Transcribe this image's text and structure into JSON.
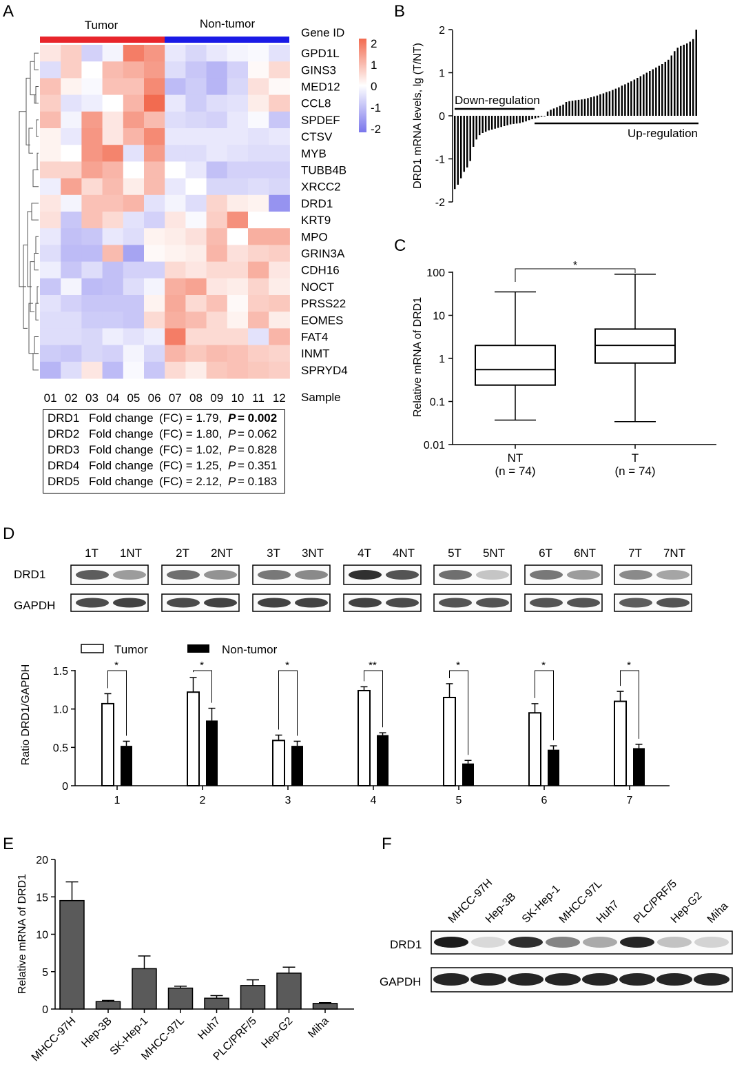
{
  "panel_labels": {
    "a": "A",
    "b": "B",
    "c": "C",
    "d": "D",
    "e": "E",
    "f": "F"
  },
  "panel_a": {
    "group_labels": [
      "Tumor",
      "Non-tumor"
    ],
    "gene_id_label": "Gene ID",
    "sample_label": "Sample",
    "genes": [
      "GPD1L",
      "GINS3",
      "MED12",
      "CCL8",
      "SPDEF",
      "CTSV",
      "MYB",
      "TUBB4B",
      "XRCC2",
      "DRD1",
      "KRT9",
      "MPO",
      "GRIN3A",
      "CDH16",
      "NOCT",
      "PRSS22",
      "EOMES",
      "FAT4",
      "INMT",
      "SPRYD4"
    ],
    "samples": [
      "01",
      "02",
      "03",
      "04",
      "05",
      "06",
      "07",
      "08",
      "09",
      "10",
      "11",
      "12"
    ],
    "colorbar_ticks": [
      "2",
      "1",
      "0",
      "-1",
      "-2"
    ],
    "colors": {
      "tumor": "#e8252b",
      "non_tumor": "#1a1ae6",
      "high": "#f26b50",
      "low": "#7a76ec"
    },
    "fold_change": [
      {
        "gene": "DRD1",
        "label": "Fold change",
        "fc_text": "(FC) = 1.79,",
        "p_label": "P",
        "p_text": "= 0.002",
        "bold": true
      },
      {
        "gene": "DRD2",
        "label": "Fold change",
        "fc_text": "(FC) = 1.80,",
        "p_label": "P",
        "p_text": "= 0.062",
        "bold": false
      },
      {
        "gene": "DRD3",
        "label": "Fold change",
        "fc_text": "(FC) = 1.02,",
        "p_label": "P",
        "p_text": "= 0.828",
        "bold": false
      },
      {
        "gene": "DRD4",
        "label": "Fold change",
        "fc_text": "(FC) = 1.25,",
        "p_label": "P",
        "p_text": "= 0.351",
        "bold": false
      },
      {
        "gene": "DRD5",
        "label": "Fold change",
        "fc_text": "(FC) = 2.12,",
        "p_label": "P",
        "p_text": "= 0.183",
        "bold": false
      }
    ],
    "heatmap_values": [
      [
        0.4,
        0.8,
        -0.8,
        -0.2,
        2.1,
        1.7,
        -0.4,
        -0.7,
        -0.4,
        -0.2,
        -0.1,
        -0.5
      ],
      [
        -0.6,
        0.8,
        0.0,
        1.1,
        1.3,
        1.6,
        -0.6,
        -1.0,
        -1.3,
        -0.8,
        0.1,
        0.6
      ],
      [
        1.0,
        0.2,
        -0.1,
        1.0,
        1.0,
        1.9,
        -1.2,
        -0.9,
        -1.3,
        -0.7,
        0.5,
        0.1
      ],
      [
        0.8,
        -0.5,
        -0.3,
        0.0,
        1.2,
        2.4,
        -0.4,
        -0.9,
        -0.6,
        -0.5,
        0.3,
        0.8
      ],
      [
        1.1,
        -0.2,
        1.6,
        0.4,
        1.6,
        1.1,
        -0.6,
        -0.7,
        -0.8,
        -0.4,
        -0.1,
        -1.0
      ],
      [
        0.2,
        -0.4,
        1.7,
        0.4,
        1.2,
        1.9,
        -0.4,
        -0.4,
        -0.4,
        -0.4,
        -0.5,
        -0.4
      ],
      [
        0.2,
        0.0,
        1.7,
        2.0,
        -0.5,
        1.6,
        -0.6,
        -0.6,
        -0.4,
        -0.5,
        -0.6,
        -0.6
      ],
      [
        0.7,
        0.7,
        1.5,
        1.2,
        0.0,
        1.1,
        0.0,
        -0.4,
        -1.1,
        -0.8,
        -0.8,
        -0.8
      ],
      [
        -0.3,
        1.5,
        0.6,
        1.1,
        0.3,
        1.1,
        -0.4,
        0.0,
        -0.7,
        -0.7,
        -0.6,
        -0.7
      ],
      [
        0.4,
        -0.2,
        1.0,
        1.0,
        1.2,
        -0.5,
        -0.2,
        -0.6,
        0.7,
        0.3,
        0.2,
        -1.9
      ],
      [
        0.5,
        -1.0,
        1.0,
        0.6,
        -0.5,
        -0.8,
        0.4,
        -0.1,
        0.8,
        1.8,
        0.0,
        0.0
      ],
      [
        -0.4,
        -1.1,
        -1.0,
        -0.4,
        -0.6,
        0.2,
        0.3,
        0.5,
        1.1,
        0.0,
        1.3,
        1.3
      ],
      [
        -0.6,
        -1.2,
        -1.2,
        1.1,
        -1.6,
        0.1,
        0.2,
        0.3,
        1.2,
        0.5,
        0.7,
        0.8
      ],
      [
        -0.3,
        -1.0,
        -0.6,
        -1.1,
        -0.8,
        -0.8,
        0.6,
        0.4,
        0.6,
        0.6,
        1.3,
        0.4
      ],
      [
        -1.0,
        -0.2,
        -1.2,
        -1.1,
        -0.6,
        -0.2,
        1.3,
        1.5,
        0.4,
        0.3,
        0.7,
        0.3
      ],
      [
        -0.5,
        -0.8,
        -1.0,
        -1.0,
        -1.0,
        0.2,
        1.4,
        0.6,
        1.0,
        0.1,
        0.8,
        0.9
      ],
      [
        -0.6,
        -0.6,
        -0.9,
        -0.9,
        -1.0,
        0.6,
        1.3,
        1.1,
        0.6,
        0.2,
        1.1,
        0.3
      ],
      [
        -0.6,
        -0.6,
        -0.7,
        -0.3,
        -0.5,
        -0.3,
        2.1,
        0.6,
        0.6,
        0.6,
        -0.5,
        1.2
      ],
      [
        -0.9,
        -1.0,
        -0.7,
        -0.8,
        -0.2,
        -0.7,
        1.2,
        0.9,
        1.1,
        1.0,
        0.8,
        0.7
      ],
      [
        -1.3,
        -0.6,
        0.4,
        -1.2,
        -0.1,
        -1.0,
        0.6,
        0.3,
        0.9,
        1.0,
        0.9,
        0.8
      ]
    ]
  },
  "panel_b": {
    "chart_data": {
      "type": "bar",
      "ylabel": "DRD1 mRNA levels, lg (T/NT)",
      "ylim": [
        -2,
        2
      ],
      "yticks": [
        "2",
        "1",
        "0",
        "-1",
        "-2"
      ],
      "annotations": [
        "Down-regulation",
        "Up-regulation"
      ],
      "values": [
        -1.7,
        -1.6,
        -1.45,
        -1.3,
        -1.2,
        -1.05,
        -0.72,
        -0.55,
        -0.45,
        -0.4,
        -0.37,
        -0.34,
        -0.32,
        -0.3,
        -0.28,
        -0.26,
        -0.24,
        -0.22,
        -0.2,
        -0.19,
        -0.18,
        -0.17,
        -0.15,
        -0.13,
        -0.1,
        -0.08,
        -0.06,
        -0.04,
        -0.02,
        -0.01,
        0.1,
        0.14,
        0.17,
        0.2,
        0.23,
        0.26,
        0.32,
        0.34,
        0.35,
        0.36,
        0.37,
        0.38,
        0.39,
        0.41,
        0.43,
        0.45,
        0.47,
        0.5,
        0.52,
        0.55,
        0.57,
        0.6,
        0.63,
        0.66,
        0.7,
        0.73,
        0.77,
        0.8,
        0.84,
        0.88,
        0.92,
        0.96,
        1.0,
        1.04,
        1.08,
        1.12,
        1.16,
        1.2,
        1.25,
        1.3,
        1.4,
        1.5,
        1.58,
        1.62,
        1.65,
        1.68,
        1.72,
        1.78,
        2.0
      ]
    }
  },
  "panel_c": {
    "chart_data": {
      "type": "box",
      "ylabel": "Relative mRNA of DRD1",
      "yscale": "log",
      "ylim": [
        0.01,
        100
      ],
      "yticks": [
        "100",
        "10",
        "1",
        "0.1",
        "0.01"
      ],
      "categories": [
        "NT",
        "T"
      ],
      "n_labels": [
        "(n = 74)",
        "(n = 74)"
      ],
      "boxes": [
        {
          "min": 0.037,
          "q1": 0.24,
          "median": 0.55,
          "q3": 2.0,
          "max": 35
        },
        {
          "min": 0.034,
          "q1": 0.78,
          "median": 2.0,
          "q3": 4.8,
          "max": 90
        }
      ],
      "significance": "*"
    }
  },
  "panel_d": {
    "lane_labels": [
      "1T",
      "1NT",
      "2T",
      "2NT",
      "3T",
      "3NT",
      "4T",
      "4NT",
      "5T",
      "5NT",
      "6T",
      "6NT",
      "7T",
      "7NT"
    ],
    "row_labels": [
      "DRD1",
      "GAPDH"
    ],
    "drd1_band_intensity": [
      0.7,
      0.35,
      0.6,
      0.4,
      0.55,
      0.45,
      0.95,
      0.75,
      0.6,
      0.12,
      0.55,
      0.35,
      0.45,
      0.3
    ],
    "gapdh_band_intensity": [
      0.8,
      0.85,
      0.8,
      0.85,
      0.85,
      0.85,
      0.85,
      0.8,
      0.75,
      0.75,
      0.75,
      0.75,
      0.7,
      0.75
    ],
    "chart_data": {
      "type": "bar",
      "ylabel": "Ratio DRD1/GAPDH",
      "ylim": [
        0,
        1.5
      ],
      "yticks": [
        "0",
        "0.5",
        "1.0",
        "1.5"
      ],
      "categories": [
        "1",
        "2",
        "3",
        "4",
        "5",
        "6",
        "7"
      ],
      "series": [
        {
          "name": "Tumor",
          "values": [
            1.07,
            1.22,
            0.59,
            1.24,
            1.15,
            0.95,
            1.1
          ],
          "errors": [
            0.13,
            0.19,
            0.07,
            0.05,
            0.18,
            0.12,
            0.13
          ]
        },
        {
          "name": "Non-tumor",
          "values": [
            0.52,
            0.85,
            0.52,
            0.66,
            0.29,
            0.47,
            0.49
          ],
          "errors": [
            0.06,
            0.16,
            0.06,
            0.03,
            0.04,
            0.05,
            0.05
          ]
        }
      ],
      "significance": [
        "*",
        "*",
        "*",
        "**",
        "*",
        "*",
        "*"
      ]
    }
  },
  "panel_e": {
    "chart_data": {
      "type": "bar",
      "ylabel": "Relative mRNA of DRD1",
      "ylim": [
        0,
        20
      ],
      "yticks": [
        "0",
        "5",
        "10",
        "15",
        "20"
      ],
      "categories": [
        "MHCC-97H",
        "Hep-3B",
        "SK-Hep-1",
        "MHCC-97L",
        "Huh7",
        "PLC/PRF/5",
        "Hep-G2",
        "Miha"
      ],
      "values": [
        14.5,
        1.0,
        5.4,
        2.8,
        1.45,
        3.15,
        4.8,
        0.75
      ],
      "errors": [
        2.5,
        0.15,
        1.7,
        0.25,
        0.35,
        0.75,
        0.8,
        0.1
      ],
      "bar_color": "#5a5a5a"
    }
  },
  "panel_f": {
    "lane_labels": [
      "MHCC-97H",
      "Hep-3B",
      "SK-Hep-1",
      "MHCC-97L",
      "Huh7",
      "PLC/PRF/5",
      "Hep-G2",
      "Miha"
    ],
    "row_labels": [
      "DRD1",
      "GAPDH"
    ],
    "drd1_band_intensity": [
      1.0,
      0.0,
      0.9,
      0.45,
      0.25,
      0.95,
      0.12,
      0.03
    ],
    "gapdh_band_intensity": [
      1.0,
      1.0,
      1.0,
      1.0,
      1.0,
      1.0,
      1.0,
      1.0
    ]
  }
}
